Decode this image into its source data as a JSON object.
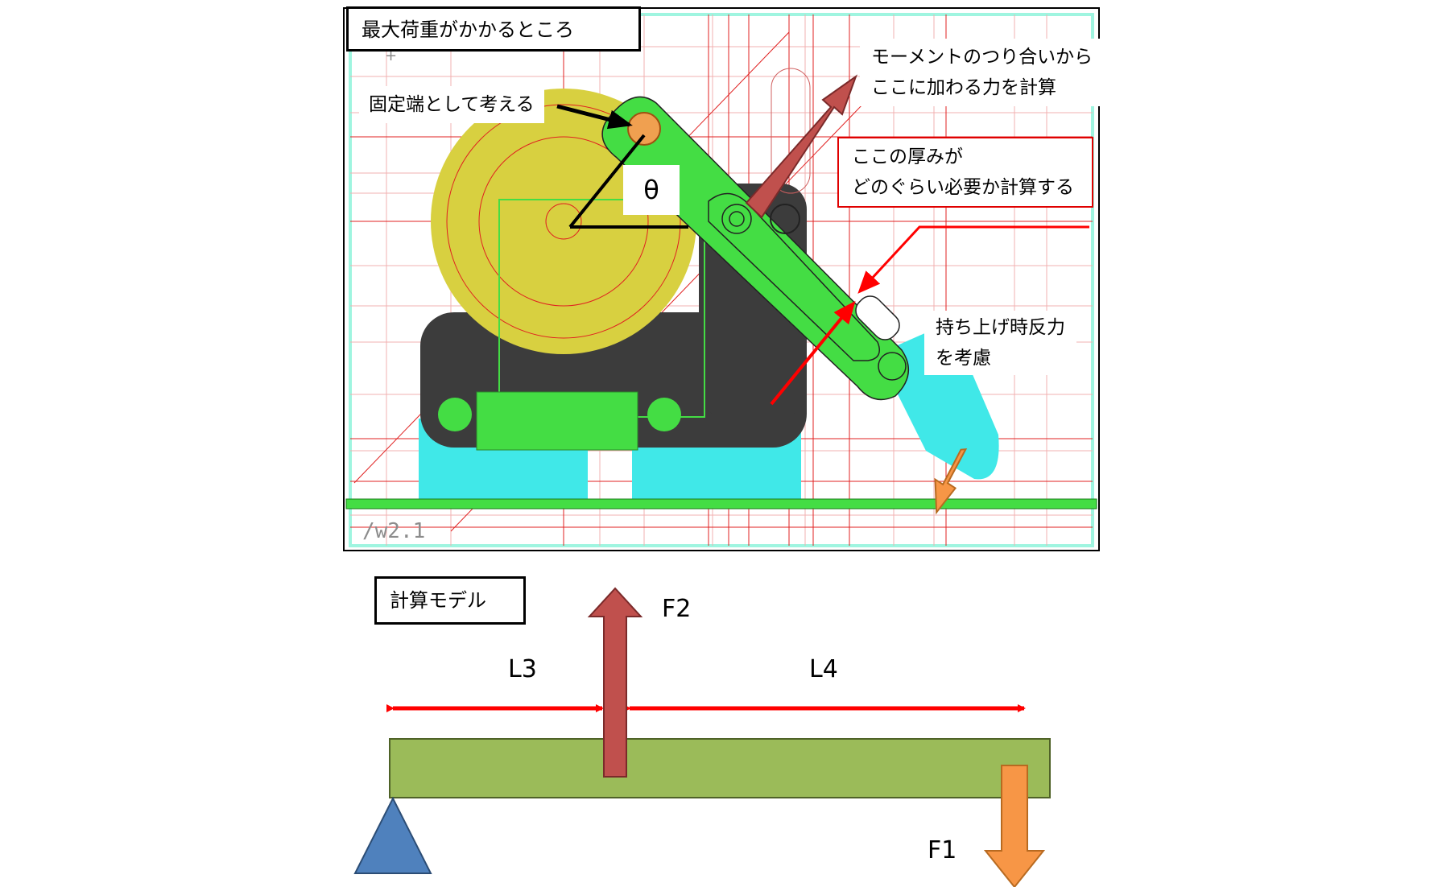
{
  "drawing": {
    "title": "最大荷重がかかるところ",
    "watermark": "/w2.1"
  },
  "annotations": {
    "fixed_end": "固定端として考える",
    "theta": "θ",
    "moment_line1": "モーメントのつり合いから",
    "moment_line2": "ここに加わる力を計算",
    "thickness_line1": "ここの厚みが",
    "thickness_line2": "どのぐらい必要か計算する",
    "reaction_line1": "持ち上げ時反力",
    "reaction_line2": "を考慮"
  },
  "model": {
    "title": "計算モデル",
    "force_up": "F2",
    "force_down": "F1",
    "length_left": "L3",
    "length_right": "L4"
  },
  "colors": {
    "arm_green": "#44dd44",
    "pulley_yellow": "#d8d040",
    "body_dark": "#3c3c3c",
    "base_cyan": "#40e8e8",
    "dim_red": "#ff0000",
    "arrow_maroon": "#c0504d",
    "arrow_orange": "#f79646",
    "beam_green": "#9bbb59",
    "support_blue": "#4f81bd"
  }
}
